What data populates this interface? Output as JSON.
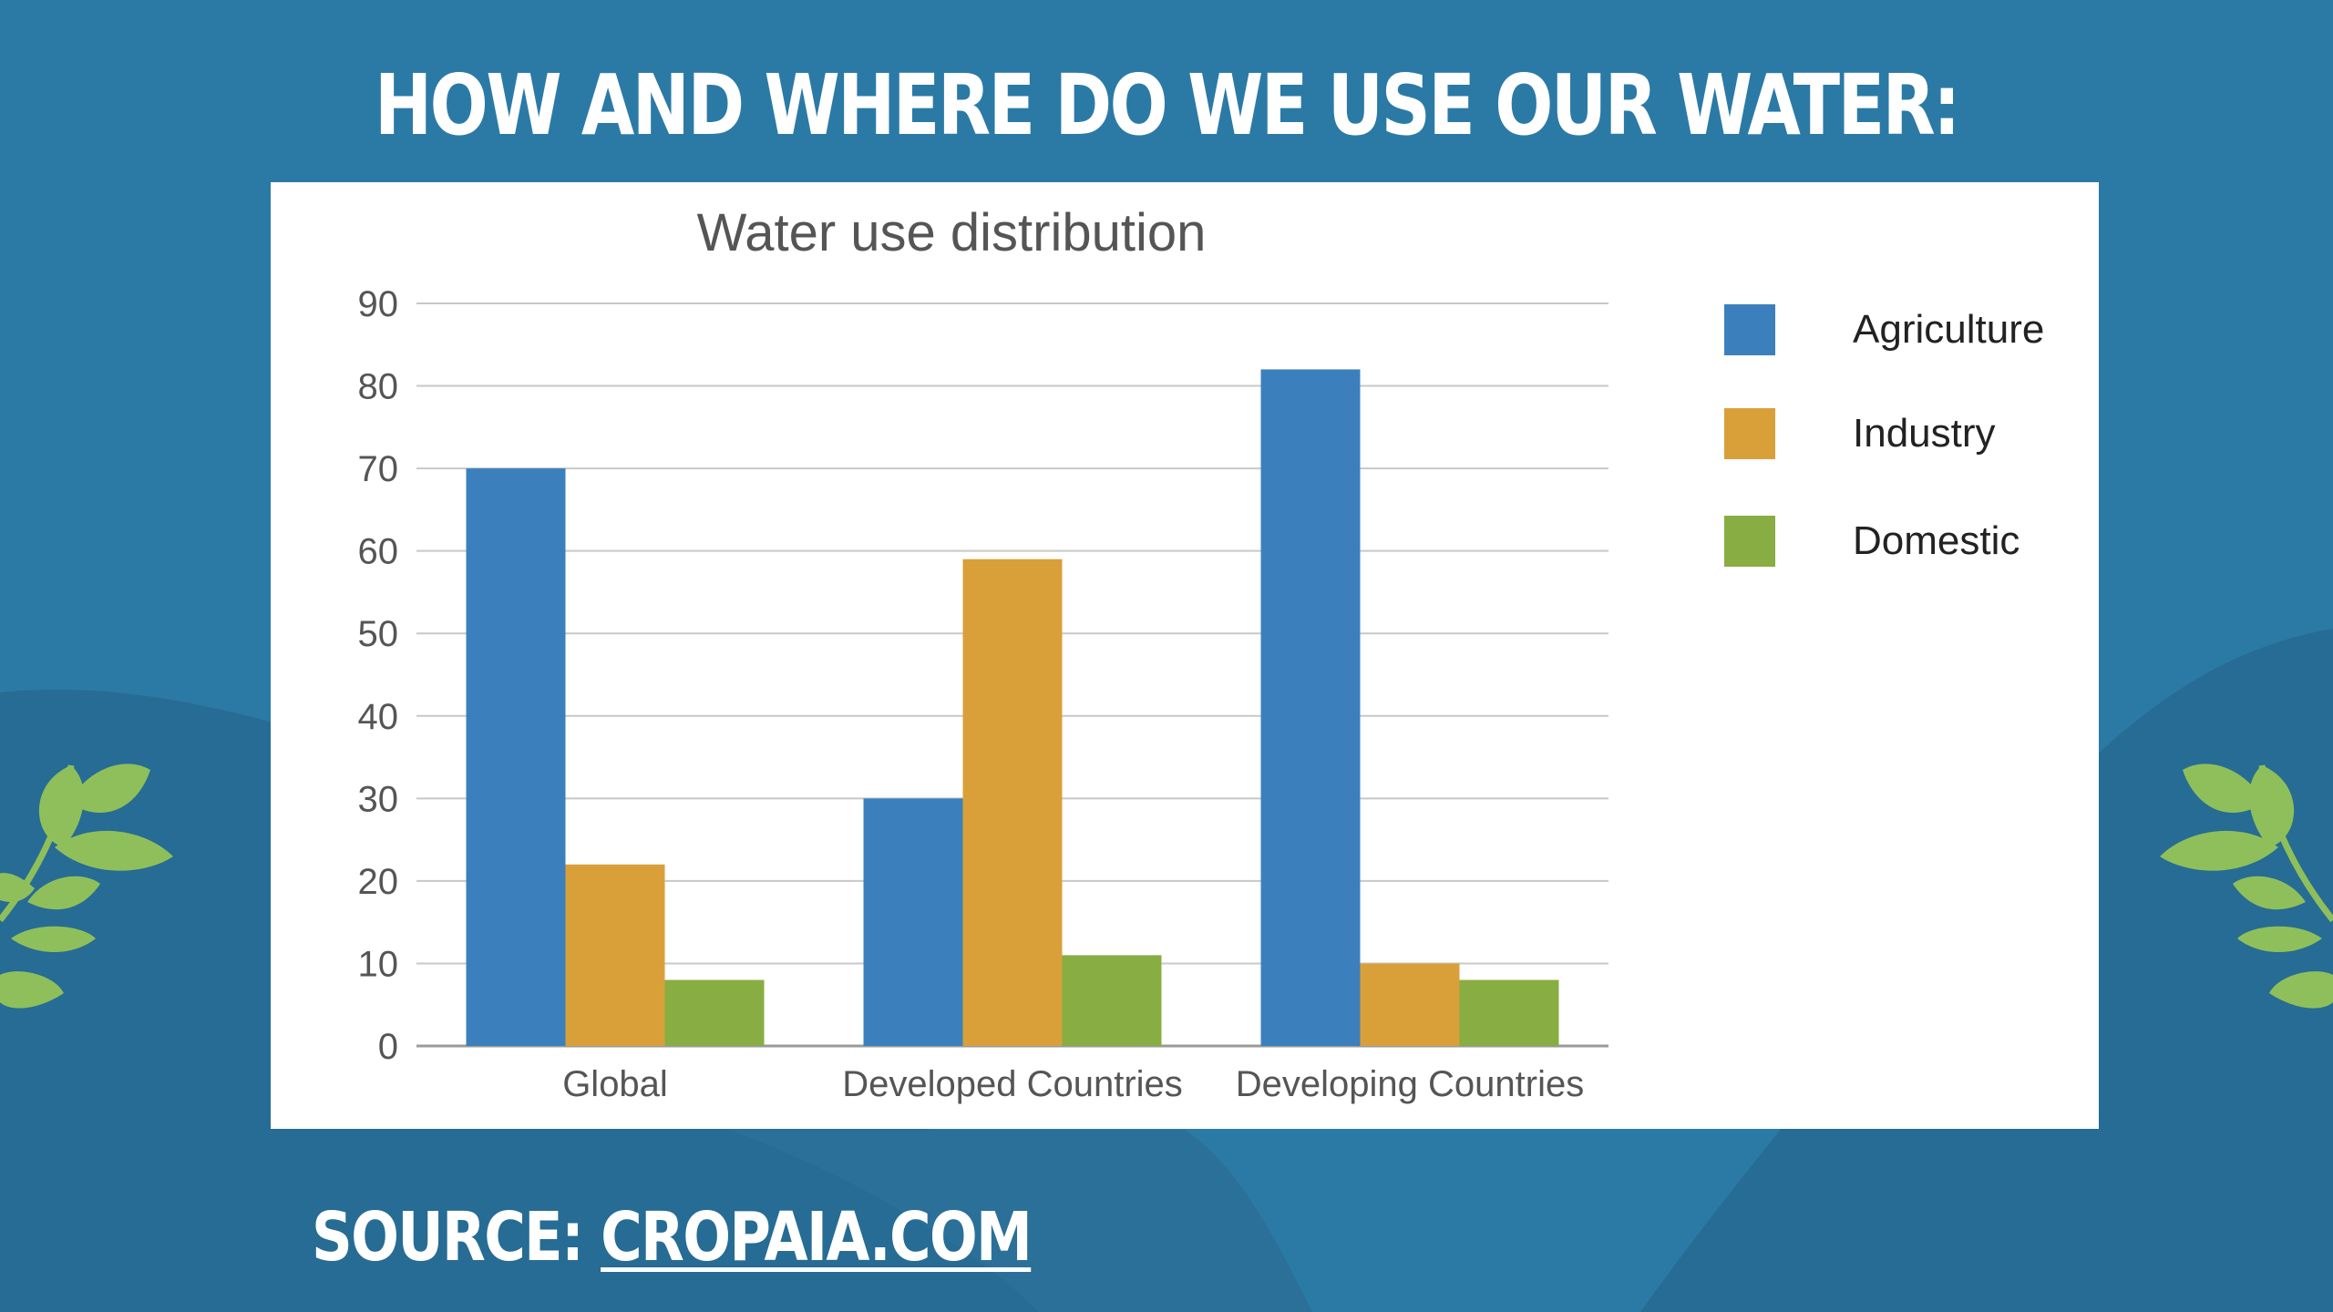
{
  "slide": {
    "title": "HOW AND WHERE DO WE USE OUR WATER:",
    "source_prefix": "SOURCE: ",
    "source_link": "CROPAIA.COM"
  },
  "colors": {
    "background": "#2b7aa6",
    "background_dark": "#266c94",
    "leaf": "#8fbf5a",
    "agriculture": "#3b80bd",
    "industry": "#d9a03a",
    "domestic": "#88ad43"
  },
  "chart_data": {
    "type": "bar",
    "title": "Water use distribution",
    "categories": [
      "Global",
      "Developed Countries",
      "Developing Countries"
    ],
    "series": [
      {
        "name": "Agriculture",
        "values": [
          70,
          30,
          82
        ],
        "color": "#3b80bd"
      },
      {
        "name": "Industry",
        "values": [
          22,
          59,
          10
        ],
        "color": "#d9a03a"
      },
      {
        "name": "Domestic",
        "values": [
          8,
          11,
          8
        ],
        "color": "#88ad43"
      }
    ],
    "ylim": [
      0,
      90
    ],
    "yticks": [
      0,
      10,
      20,
      30,
      40,
      50,
      60,
      70,
      80,
      90
    ],
    "grid": true,
    "legend_position": "right"
  }
}
